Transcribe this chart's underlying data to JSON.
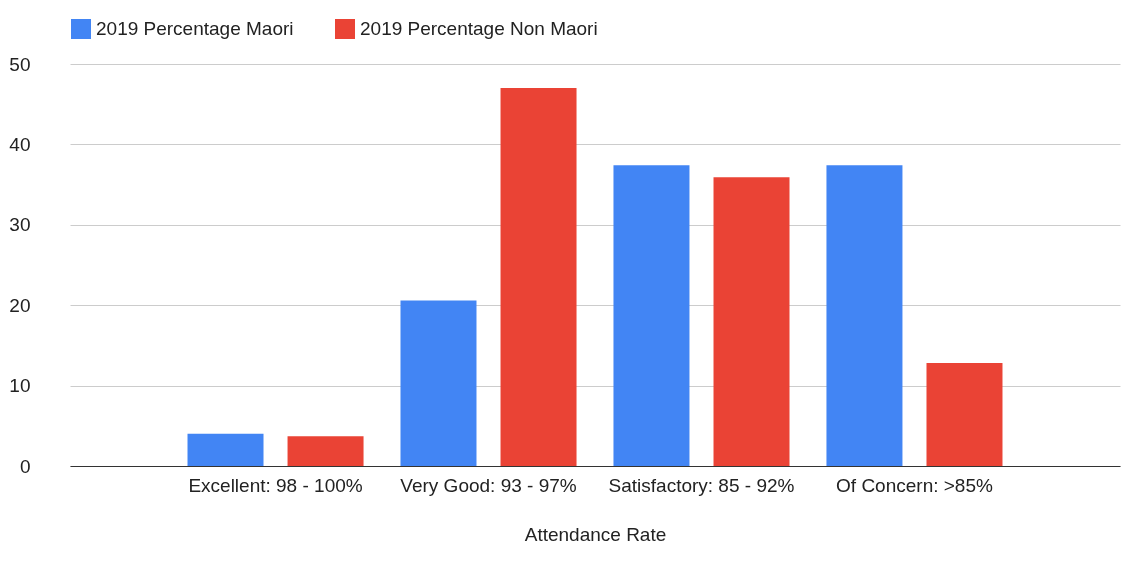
{
  "chart_data": {
    "type": "bar",
    "xlabel": "Attendance Rate",
    "categories": [
      "Excellent: 98 - 100%",
      "Very Good: 93 - 97%",
      "Satisfactory: 85 - 92%",
      "Of Concern: >85%"
    ],
    "series": [
      {
        "name": "2019 Percentage Maori",
        "color": "#4285f4",
        "values": [
          4,
          20.6,
          37.4,
          37.4
        ]
      },
      {
        "name": "2019 Percentage Non Maori",
        "color": "#ea4335",
        "values": [
          3.7,
          47,
          35.9,
          12.8
        ]
      }
    ],
    "ylim": [
      0,
      50
    ],
    "yticks": [
      0,
      10,
      20,
      30,
      40,
      50
    ],
    "grid": "y",
    "legend": "top"
  }
}
